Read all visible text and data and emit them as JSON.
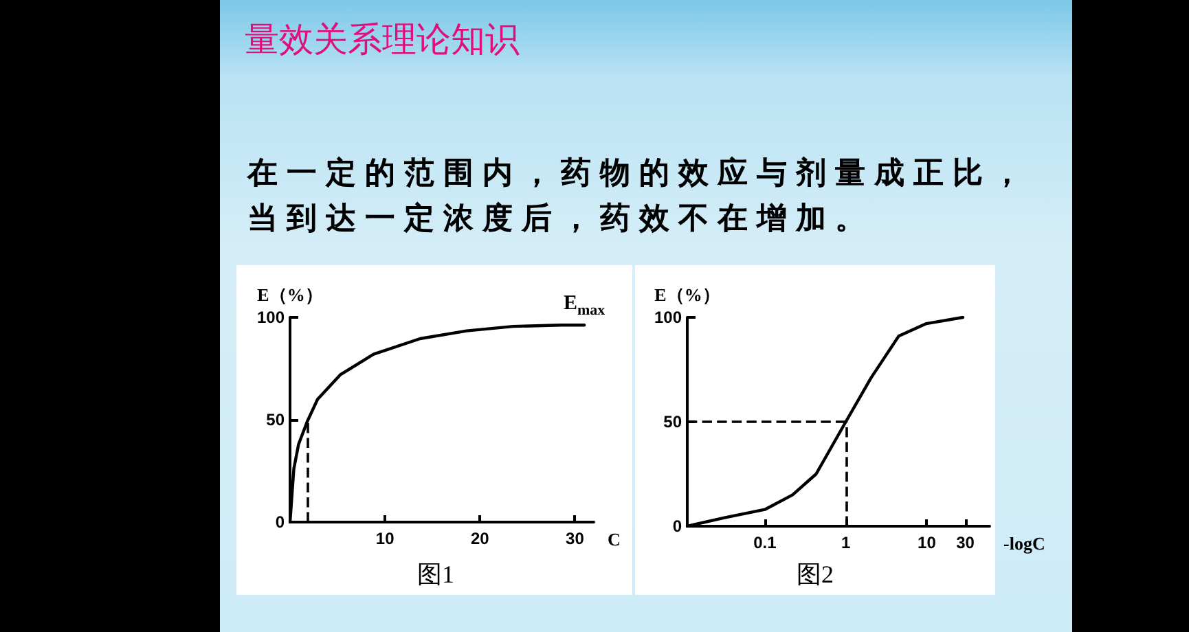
{
  "chart_data": [
    {
      "type": "line",
      "title": "量效关系理论知识",
      "subtitle": "在一定的范围内，药物的效应与剂量成正比，当到达一定浓度后，药效不在增加。",
      "xlabel": "C",
      "ylabel": "E（%）",
      "x": [
        0,
        0.4,
        0.9,
        1.8,
        2.9,
        5.3,
        8.8,
        13.7,
        18.6,
        23.5,
        28.5,
        31
      ],
      "series": [
        {
          "color": "#000000",
          "values": [
            0,
            26,
            38,
            49,
            60,
            72,
            82,
            89.6,
            93.4,
            95.6,
            96.2,
            96.2
          ]
        }
      ],
      "xlim": [
        0,
        32
      ],
      "xticks": [
        {
          "value": 0,
          "label": null
        },
        10,
        20,
        30
      ],
      "ylim": [
        0,
        100
      ],
      "yticks": [
        0,
        50,
        100
      ],
      "marker": "none",
      "line_style": "solid",
      "ref_lines": [
        {
          "axis": "x",
          "value": 1.9,
          "line_style": "dashed"
        }
      ],
      "annotations": [
        "图1",
        "E$_{max}$"
      ]
    },
    {
      "type": "line",
      "xlabel": "-logC",
      "ylabel": "E（%）",
      "log": "x",
      "x": [
        0.011,
        0.031,
        0.1,
        0.22,
        0.43,
        1,
        2.05,
        4.5,
        9.9,
        28
      ],
      "series": [
        {
          "color": "#000000",
          "values": [
            0,
            4,
            8,
            15,
            25,
            50,
            71,
            91,
            97,
            100
          ]
        }
      ],
      "xlim": [
        0.011,
        60
      ],
      "xticks": [
        0.1,
        1,
        10,
        30
      ],
      "ylim": [
        0,
        100
      ],
      "yticks": [
        0,
        50,
        100
      ],
      "marker": "none",
      "line_style": "solid",
      "ref_lines": [
        {
          "axis": "x",
          "value": 1,
          "line_style": "dashed"
        },
        {
          "axis": "y",
          "value": 50,
          "line_style": "dashed"
        }
      ],
      "annotations": [
        "图2"
      ]
    }
  ]
}
